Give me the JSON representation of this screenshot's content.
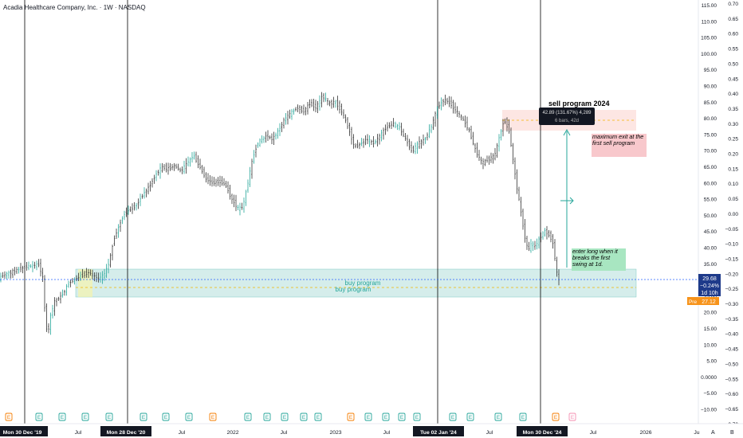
{
  "header": {
    "symbol_title": "Acadia Healthcare Company, Inc. · 1W · NASDAQ"
  },
  "axis_right_price": {
    "ticks": [
      "115.00",
      "110.00",
      "105.00",
      "100.00",
      "95.00",
      "90.00",
      "85.00",
      "80.00",
      "75.00",
      "70.00",
      "65.00",
      "60.00",
      "55.00",
      "50.00",
      "45.00",
      "40.00",
      "35.00",
      "30.00",
      "25.00",
      "20.00",
      "15.00",
      "10.00",
      "5.00",
      "0.0000",
      "−5.00",
      "−10.00"
    ]
  },
  "axis_right_secondary": {
    "ticks": [
      "0.70",
      "0.65",
      "0.60",
      "0.55",
      "0.50",
      "0.45",
      "0.40",
      "0.35",
      "0.30",
      "0.25",
      "0.20",
      "0.15",
      "0.10",
      "0.05",
      "0.00",
      "−0.05",
      "−0.10",
      "−0.15",
      "−0.20",
      "−0.25",
      "−0.30",
      "−0.35",
      "−0.40",
      "−0.45",
      "−0.50",
      "−0.55",
      "−0.60",
      "−0.65",
      "−0.70"
    ]
  },
  "price_badge": {
    "price": "29.68",
    "change": "−0.24%",
    "countdown": "1d 10h"
  },
  "pre_badge": {
    "label": "Pre",
    "price": "27.12"
  },
  "time_axis": {
    "labels": [
      {
        "text": "Mon 30 Dec '19",
        "highlight": true
      },
      {
        "text": "Jul",
        "highlight": false
      },
      {
        "text": "Mon 28 Dec '20",
        "highlight": true
      },
      {
        "text": "Jul",
        "highlight": false
      },
      {
        "text": "2022",
        "highlight": false
      },
      {
        "text": "Jul",
        "highlight": false
      },
      {
        "text": "2023",
        "highlight": false
      },
      {
        "text": "Jul",
        "highlight": false
      },
      {
        "text": "Tue 02 Jan '24",
        "highlight": true
      },
      {
        "text": "Jul",
        "highlight": false
      },
      {
        "text": "Mon 30 Dec '24",
        "highlight": true
      },
      {
        "text": "Jul",
        "highlight": false
      },
      {
        "text": "2026",
        "highlight": false
      },
      {
        "text": "Ju",
        "highlight": false
      }
    ],
    "corner_labels": [
      "A",
      "B"
    ]
  },
  "earnings_marker_label": "E",
  "annotations": {
    "sell_program_title": "sell program 2024",
    "measure_line1": "42.89 (131.67%) 4,289",
    "measure_line2": "6 bars, 42d",
    "max_exit_note": "maximum exit at the first sell program",
    "enter_long_note": "enter long when it breaks the first swing at 1d.",
    "buy_zone_label_1": "buy program",
    "buy_zone_label_2": "buy program"
  },
  "colors": {
    "up_candle": "#26a69a",
    "down_candle": "#555555",
    "buy_zone": "#b2dfdb",
    "sell_zone": "#fde0dc",
    "note_pink": "#f8c8cc",
    "note_green": "#a8e6c1",
    "last_price_blue": "#1e3a8a",
    "pre_orange": "#f7931a",
    "price_line": "#2962ff"
  }
}
